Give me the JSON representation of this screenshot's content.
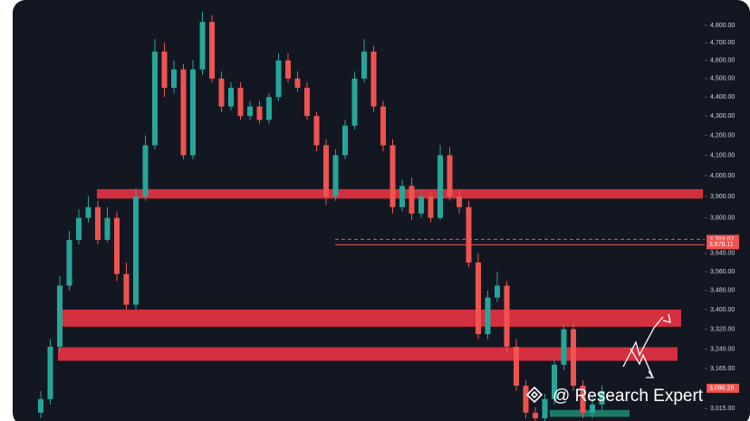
{
  "chart_data": {
    "type": "candlestick",
    "log_scale": true,
    "ylim": [
      2970,
      4950
    ],
    "yticks": [
      {
        "value": 4800,
        "label": "4,800.00"
      },
      {
        "value": 4700,
        "label": "4,700.00"
      },
      {
        "value": 4600,
        "label": "4,600.00"
      },
      {
        "value": 4500,
        "label": "4,500.00"
      },
      {
        "value": 4400,
        "label": "4,400.00"
      },
      {
        "value": 4300,
        "label": "4,300.00"
      },
      {
        "value": 4200,
        "label": "4,200.00"
      },
      {
        "value": 4100,
        "label": "4,100.00"
      },
      {
        "value": 4000,
        "label": "4,000.00"
      },
      {
        "value": 3900,
        "label": "3,900.00"
      },
      {
        "value": 3800,
        "label": "3,800.00"
      },
      {
        "value": 3640,
        "label": "3,640.00"
      },
      {
        "value": 3560,
        "label": "3,560.00"
      },
      {
        "value": 3480,
        "label": "3,480.00"
      },
      {
        "value": 3400,
        "label": "3,400.00"
      },
      {
        "value": 3320,
        "label": "3,320.00"
      },
      {
        "value": 3240,
        "label": "3,240.00"
      },
      {
        "value": 3165,
        "label": "3,165.00"
      },
      {
        "value": 3015,
        "label": "3,015.00"
      }
    ],
    "price_tags": [
      {
        "value": 3702.07,
        "label": "3,702.07",
        "color": "#ef5350"
      },
      {
        "value": 3678.11,
        "label": "3,678.11",
        "color": "#ef5350"
      },
      {
        "value": 3090.28,
        "label": "3,090.28",
        "color": "#ef5350"
      }
    ],
    "up_color": "#26a69a",
    "down_color": "#ef5350",
    "zone_color": "#d32f3f",
    "zones": [
      {
        "low": 3890,
        "high": 3935
      },
      {
        "low": 3330,
        "high": 3400
      },
      {
        "low": 3195,
        "high": 3248
      }
    ],
    "support_zone": {
      "low": 2985,
      "high": 3010,
      "color": "#1e8c73"
    },
    "open": [
      3000,
      3050,
      3250,
      3500,
      3700,
      3800,
      3850,
      3700,
      3800,
      3550,
      3420,
      3900,
      4150,
      4650,
      4450,
      4550,
      4100,
      4550,
      4820,
      4500,
      4350,
      4450,
      4300,
      4350,
      4280,
      4400,
      4600,
      4500,
      4450,
      4300,
      4150,
      3900,
      4100,
      4250,
      4500,
      4650,
      4350,
      4150,
      3850,
      3950,
      3820,
      3900,
      3800,
      4100,
      3900,
      3850,
      3600,
      3300,
      3450,
      3500,
      3250,
      3100,
      3000,
      2980,
      3050,
      3180,
      3320,
      3100,
      3000,
      3030
    ],
    "high": [
      3080,
      3280,
      3540,
      3740,
      3840,
      3900,
      3880,
      3850,
      3830,
      3600,
      3940,
      4200,
      4720,
      4700,
      4600,
      4580,
      4600,
      4880,
      4860,
      4540,
      4480,
      4480,
      4380,
      4380,
      4420,
      4640,
      4640,
      4540,
      4480,
      4320,
      4180,
      4130,
      4280,
      4540,
      4720,
      4680,
      4380,
      4180,
      3980,
      3990,
      3930,
      3920,
      4150,
      4140,
      3930,
      3880,
      3640,
      3480,
      3560,
      3520,
      3280,
      3120,
      3020,
      3070,
      3200,
      3340,
      3340,
      3120,
      3060,
      3100
    ],
    "low": [
      2980,
      3030,
      3230,
      3480,
      3680,
      3780,
      3680,
      3690,
      3520,
      3400,
      3400,
      3880,
      4130,
      4400,
      4420,
      4080,
      4080,
      4520,
      4480,
      4320,
      4330,
      4280,
      4280,
      4260,
      4260,
      4380,
      4480,
      4430,
      4280,
      4120,
      3860,
      3880,
      4080,
      4230,
      4480,
      4320,
      4120,
      3820,
      3830,
      3790,
      3800,
      3780,
      3790,
      3880,
      3820,
      3580,
      3280,
      3280,
      3430,
      3230,
      3080,
      2980,
      2960,
      2970,
      3030,
      3160,
      3080,
      2980,
      2980,
      3010
    ],
    "close": [
      3050,
      3250,
      3500,
      3700,
      3800,
      3850,
      3700,
      3800,
      3550,
      3420,
      3900,
      4150,
      4650,
      4450,
      4550,
      4100,
      4550,
      4820,
      4500,
      4350,
      4450,
      4300,
      4350,
      4280,
      4400,
      4600,
      4500,
      4450,
      4300,
      4150,
      3900,
      4100,
      4250,
      4500,
      4650,
      4350,
      4150,
      3850,
      3950,
      3820,
      3900,
      3800,
      4100,
      3900,
      3850,
      3600,
      3300,
      3450,
      3500,
      3250,
      3100,
      3000,
      2980,
      3050,
      3180,
      3320,
      3100,
      3000,
      3030,
      3080
    ],
    "watermark": "@ Research Expert"
  }
}
